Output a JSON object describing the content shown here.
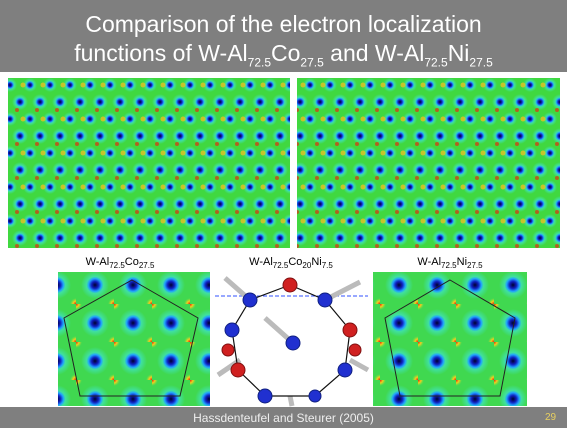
{
  "title": {
    "lines": [
      [
        {
          "text": "Comparison of  the electron localization"
        }
      ],
      [
        {
          "text": "functions of W-Al"
        },
        {
          "text": "72.5",
          "sub": true
        },
        {
          "text": "Co"
        },
        {
          "text": "27.5",
          "sub": true
        },
        {
          "text": " and W-Al"
        },
        {
          "text": "72.5",
          "sub": true
        },
        {
          "text": "Ni"
        },
        {
          "text": "27.5",
          "sub": true
        }
      ]
    ]
  },
  "panels": [
    {
      "label": [
        {
          "text": "W-Al"
        },
        {
          "text": "72.5",
          "sub": true
        },
        {
          "text": "Co"
        },
        {
          "text": "27.5",
          "sub": true
        }
      ]
    },
    {
      "label": [
        {
          "text": "W-Al"
        },
        {
          "text": "72.5",
          "sub": true
        },
        {
          "text": "Co"
        },
        {
          "text": "20",
          "sub": true
        },
        {
          "text": "Ni"
        },
        {
          "text": "7.5",
          "sub": true
        }
      ]
    },
    {
      "label": [
        {
          "text": "W-Al"
        },
        {
          "text": "72.5",
          "sub": true
        },
        {
          "text": "Ni"
        },
        {
          "text": "27.5",
          "sub": true
        }
      ]
    }
  ],
  "footer": {
    "citation": "Hassdenteufel and Steurer (2005)",
    "page": "29"
  }
}
